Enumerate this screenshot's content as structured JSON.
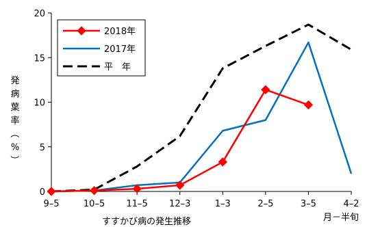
{
  "chart_data": {
    "type": "line",
    "title": "",
    "xlabel": "すすかび病の発生推移",
    "xunit": "月－半旬",
    "ylabel": "発病葉率（%）",
    "categories": [
      "9-5",
      "10-5",
      "11-5",
      "12-3",
      "1-3",
      "2-5",
      "3-5",
      "4-2"
    ],
    "ylim": [
      0,
      20
    ],
    "yticks": [
      0,
      5,
      10,
      15,
      20
    ],
    "grid": false,
    "legend_position": "top-left",
    "series": [
      {
        "name": "2018年",
        "color": "#ff0000",
        "marker": "diamond",
        "dash": "solid",
        "values": [
          0,
          0.1,
          0.3,
          0.7,
          3.3,
          11.4,
          9.7,
          null
        ]
      },
      {
        "name": "2017年",
        "color": "#0070c0",
        "marker": "none",
        "dash": "solid",
        "values": [
          0,
          0.1,
          0.7,
          1.0,
          6.8,
          8.0,
          16.7,
          2.0
        ]
      },
      {
        "name": "平　年",
        "color": "#000000",
        "marker": "none",
        "dash": "dashed",
        "values": [
          0,
          0.2,
          2.8,
          6.2,
          13.8,
          16.3,
          18.7,
          15.9
        ]
      }
    ]
  }
}
